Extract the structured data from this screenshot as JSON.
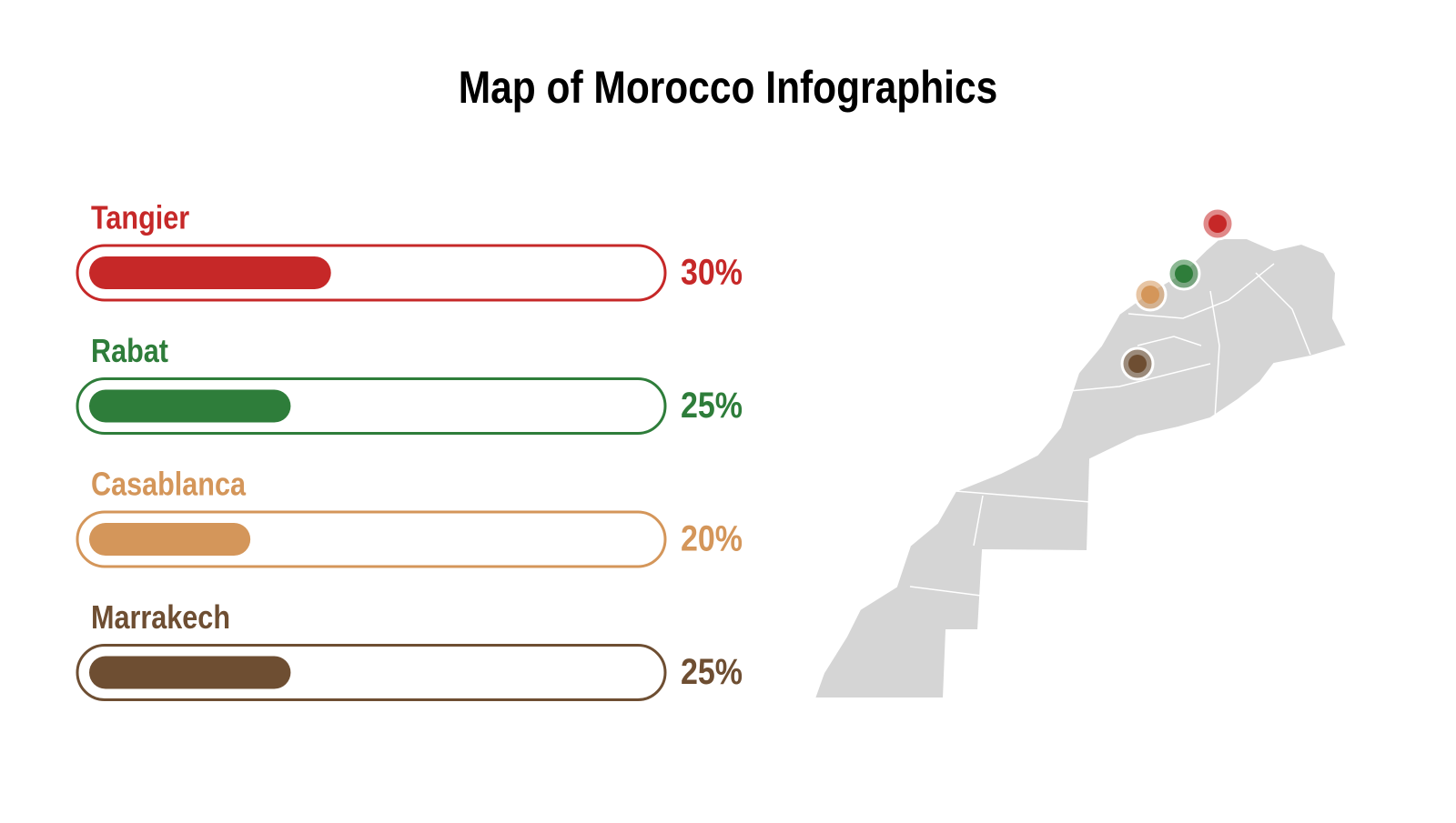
{
  "chart_data": {
    "type": "progress",
    "title": "Map of Morocco Infographics",
    "categories": [
      "Tangier",
      "Rabat",
      "Casablanca",
      "Marrakech"
    ],
    "values": [
      30,
      25,
      20,
      25
    ],
    "value_labels": [
      "30%",
      "25%",
      "20%",
      "25%"
    ],
    "colors": [
      "#c62828",
      "#2e7d3a",
      "#d4965a",
      "#6e4e32"
    ],
    "xlim": [
      0,
      70
    ]
  }
}
